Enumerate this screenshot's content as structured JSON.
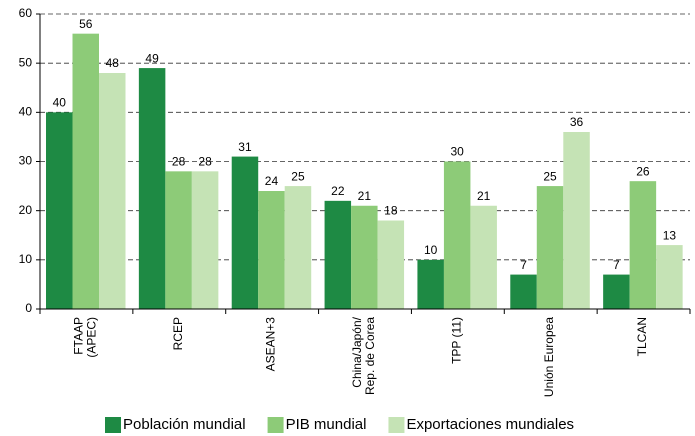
{
  "chart_data": {
    "type": "bar",
    "categories": [
      [
        "FTAAP",
        "(APEC)"
      ],
      [
        "RCEP"
      ],
      [
        "ASEAN+3"
      ],
      [
        "China/Japón/",
        "Rep. de Corea"
      ],
      [
        "TPP (11)"
      ],
      [
        "Unión Europea"
      ],
      [
        "TLCAN"
      ]
    ],
    "series": [
      {
        "name": "Población mundial",
        "color": "#1e8a44",
        "values": [
          40,
          49,
          31,
          22,
          10,
          7,
          7
        ]
      },
      {
        "name": "PIB mundial",
        "color": "#8dcb78",
        "values": [
          56,
          28,
          24,
          21,
          30,
          25,
          26
        ]
      },
      {
        "name": "Exportaciones mundiales",
        "color": "#c5e3b5",
        "values": [
          48,
          28,
          25,
          18,
          21,
          36,
          13
        ]
      }
    ],
    "ylim": [
      0,
      60
    ],
    "yticks": [
      0,
      10,
      20,
      30,
      40,
      50,
      60
    ],
    "grid": true,
    "legend": "bottom"
  }
}
